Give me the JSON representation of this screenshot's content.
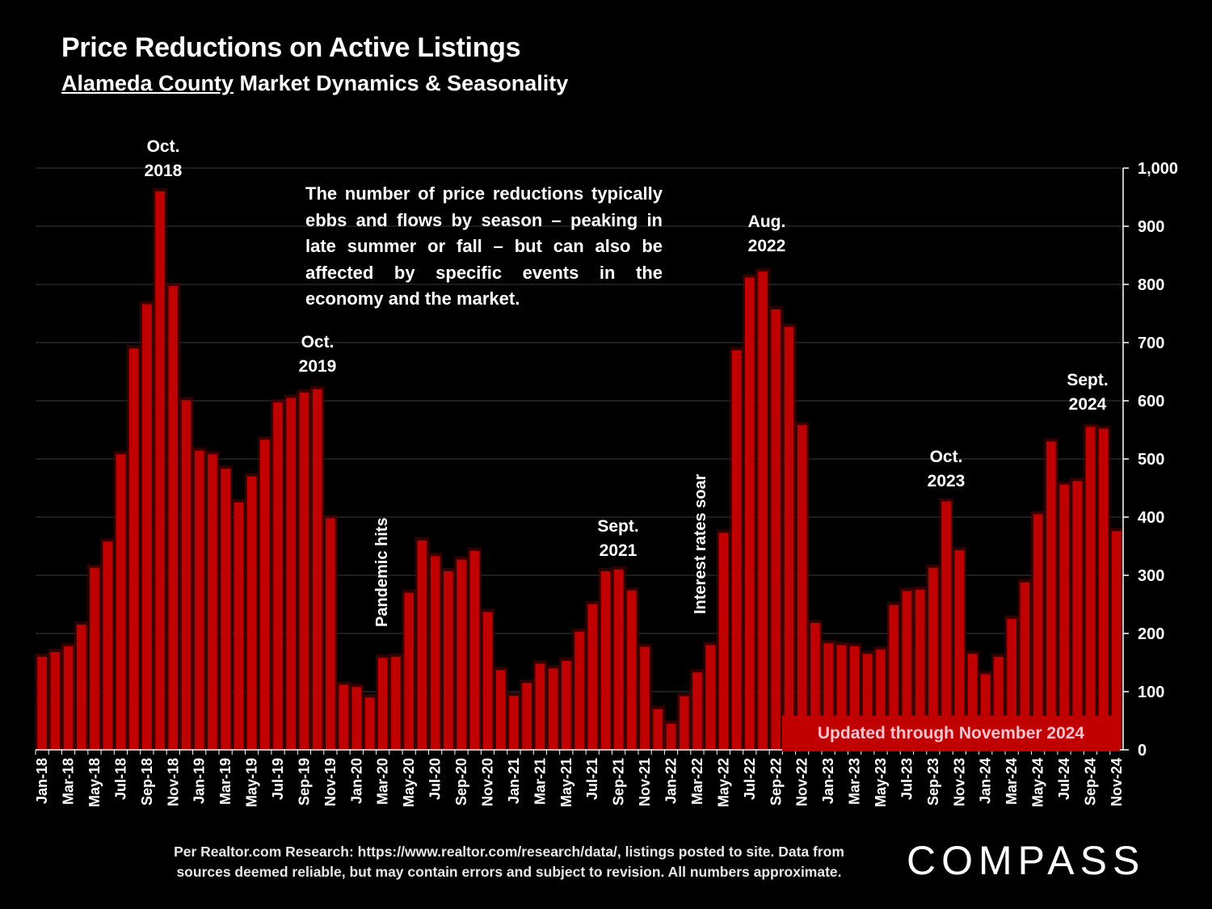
{
  "header": {
    "title": "Price Reductions on Active Listings",
    "subtitle_underlined": "Alameda County",
    "subtitle_rest": " Market Dynamics & Seasonality"
  },
  "note": "The number of price reductions typically ebbs and flows by season – peaking in late summer or fall – but can also be affected by specific events in the economy and the market.",
  "annotations": {
    "oct2018": "Oct.\n2018",
    "oct2019": "Oct.\n2019",
    "pandemic": "Pandemic hits",
    "sept2021": "Sept.\n2021",
    "interest": "Interest rates soar",
    "aug2022": "Aug.\n2022",
    "oct2023": "Oct.\n2023",
    "sept2024": "Sept.\n2024"
  },
  "badge": "Updated through November 2024",
  "footer": {
    "source_line1": "Per Realtor.com Research:  https://www.realtor.com/research/data/, listings posted to site. Data from",
    "source_line2": "sources deemed reliable, but may contain errors and subject to revision. All numbers approximate.",
    "logo": "COMPASS"
  },
  "colors": {
    "bar": "#c00000",
    "bar_dark": "#800000",
    "background": "#000000",
    "grid": "#3a3a3a"
  },
  "chart_data": {
    "type": "bar",
    "title": "Price Reductions on Active Listings",
    "xlabel": "",
    "ylabel": "",
    "ylim": [
      0,
      1000
    ],
    "yticks": [
      0,
      100,
      200,
      300,
      400,
      500,
      600,
      700,
      800,
      900,
      1000
    ],
    "ytick_labels": [
      "0",
      "100",
      "200",
      "300",
      "400",
      "500",
      "600",
      "700",
      "800",
      "900",
      "1,000"
    ],
    "y_axis_side": "right",
    "grid": true,
    "categories": [
      "Jan-18",
      "Feb-18",
      "Mar-18",
      "Apr-18",
      "May-18",
      "Jun-18",
      "Jul-18",
      "Aug-18",
      "Sep-18",
      "Oct-18",
      "Nov-18",
      "Dec-18",
      "Jan-19",
      "Feb-19",
      "Mar-19",
      "Apr-19",
      "May-19",
      "Jun-19",
      "Jul-19",
      "Aug-19",
      "Sep-19",
      "Oct-19",
      "Nov-19",
      "Dec-19",
      "Jan-20",
      "Feb-20",
      "Mar-20",
      "Apr-20",
      "May-20",
      "Jun-20",
      "Jul-20",
      "Aug-20",
      "Sep-20",
      "Oct-20",
      "Nov-20",
      "Dec-20",
      "Jan-21",
      "Feb-21",
      "Mar-21",
      "Apr-21",
      "May-21",
      "Jun-21",
      "Jul-21",
      "Aug-21",
      "Sep-21",
      "Oct-21",
      "Nov-21",
      "Dec-21",
      "Jan-22",
      "Feb-22",
      "Mar-22",
      "Apr-22",
      "May-22",
      "Jun-22",
      "Jul-22",
      "Aug-22",
      "Sep-22",
      "Oct-22",
      "Nov-22",
      "Dec-22",
      "Jan-23",
      "Feb-23",
      "Mar-23",
      "Apr-23",
      "May-23",
      "Jun-23",
      "Jul-23",
      "Aug-23",
      "Sep-23",
      "Oct-23",
      "Nov-23",
      "Dec-23",
      "Jan-24",
      "Feb-24",
      "Mar-24",
      "Apr-24",
      "May-24",
      "Jun-24",
      "Jul-24",
      "Aug-24",
      "Sep-24",
      "Oct-24",
      "Nov-24"
    ],
    "visible_tick_labels": [
      "Jan-18",
      "Mar-18",
      "May-18",
      "Jul-18",
      "Sep-18",
      "Nov-18",
      "Jan-19",
      "Mar-19",
      "May-19",
      "Jul-19",
      "Sep-19",
      "Nov-19",
      "Jan-20",
      "Mar-20",
      "May-20",
      "Jul-20",
      "Sep-20",
      "Nov-20",
      "Jan-21",
      "Mar-21",
      "May-21",
      "Jul-21",
      "Sep-21",
      "Nov-21",
      "Jan-22",
      "Mar-22",
      "May-22",
      "Jul-22",
      "Sep-22",
      "Nov-22",
      "Jan-23",
      "Mar-23",
      "May-23",
      "Jul-23",
      "Sep-23",
      "Nov-23",
      "Jan-24",
      "Mar-24",
      "May-24",
      "Jul-24",
      "Sep-24",
      "Nov-24"
    ],
    "values": [
      160,
      168,
      178,
      215,
      313,
      358,
      508,
      690,
      766,
      960,
      797,
      601,
      514,
      508,
      483,
      425,
      470,
      533,
      597,
      605,
      614,
      620,
      398,
      112,
      108,
      90,
      158,
      160,
      270,
      360,
      333,
      307,
      327,
      342,
      237,
      137,
      93,
      115,
      148,
      140,
      153,
      203,
      250,
      307,
      310,
      274,
      177,
      70,
      45,
      92,
      133,
      180,
      373,
      687,
      812,
      822,
      757,
      727,
      558,
      218,
      183,
      180,
      178,
      165,
      172,
      249,
      273,
      275,
      313,
      427,
      343,
      165,
      130,
      160,
      225,
      288,
      405,
      530,
      456,
      462,
      555,
      552,
      376
    ]
  }
}
